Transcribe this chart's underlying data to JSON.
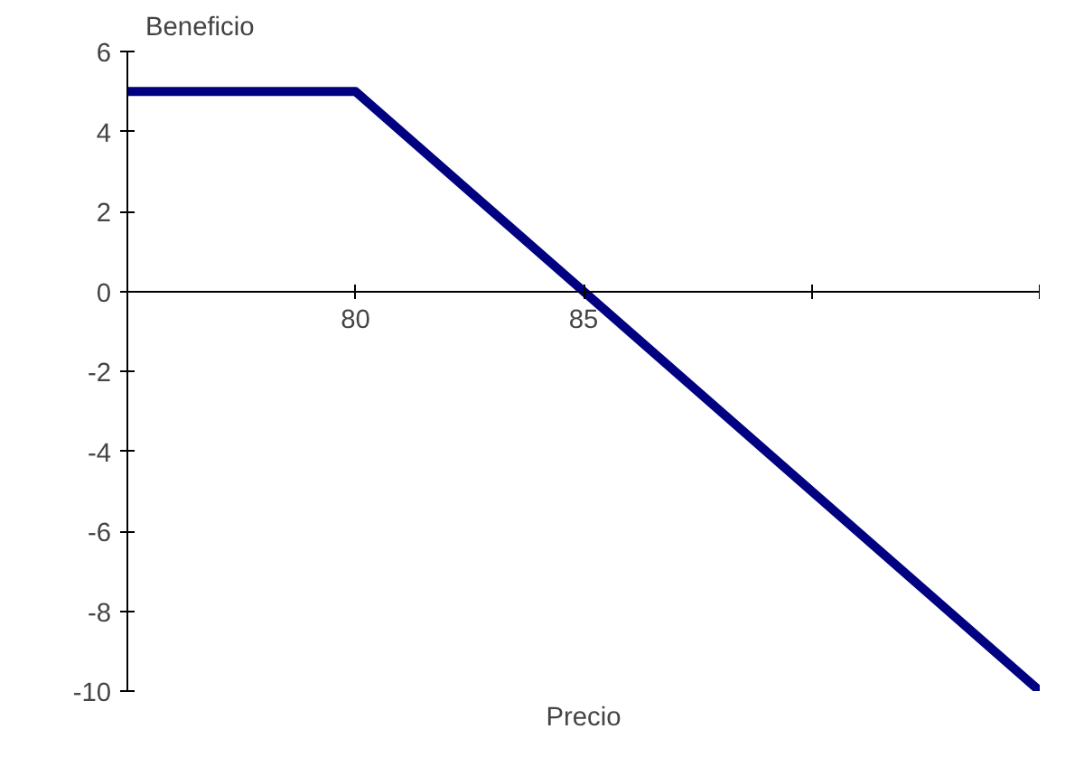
{
  "chart_data": {
    "type": "line",
    "xlabel": "Precio",
    "ylabel": "Beneficio",
    "x": [
      75,
      80,
      95
    ],
    "series": [
      {
        "color": "#000080",
        "values": [
          5,
          5,
          -10
        ]
      }
    ],
    "xlim": [
      75,
      95
    ],
    "xticks": [
      80,
      85,
      {
        "value": 90,
        "label": null
      },
      {
        "value": 95,
        "label": null
      }
    ],
    "ylim": [
      -10,
      6
    ],
    "yticks": [
      -10,
      -8,
      -6,
      -4,
      -2,
      0,
      2,
      4,
      6
    ],
    "grid": false,
    "marker": "none",
    "line_style": "solid"
  }
}
